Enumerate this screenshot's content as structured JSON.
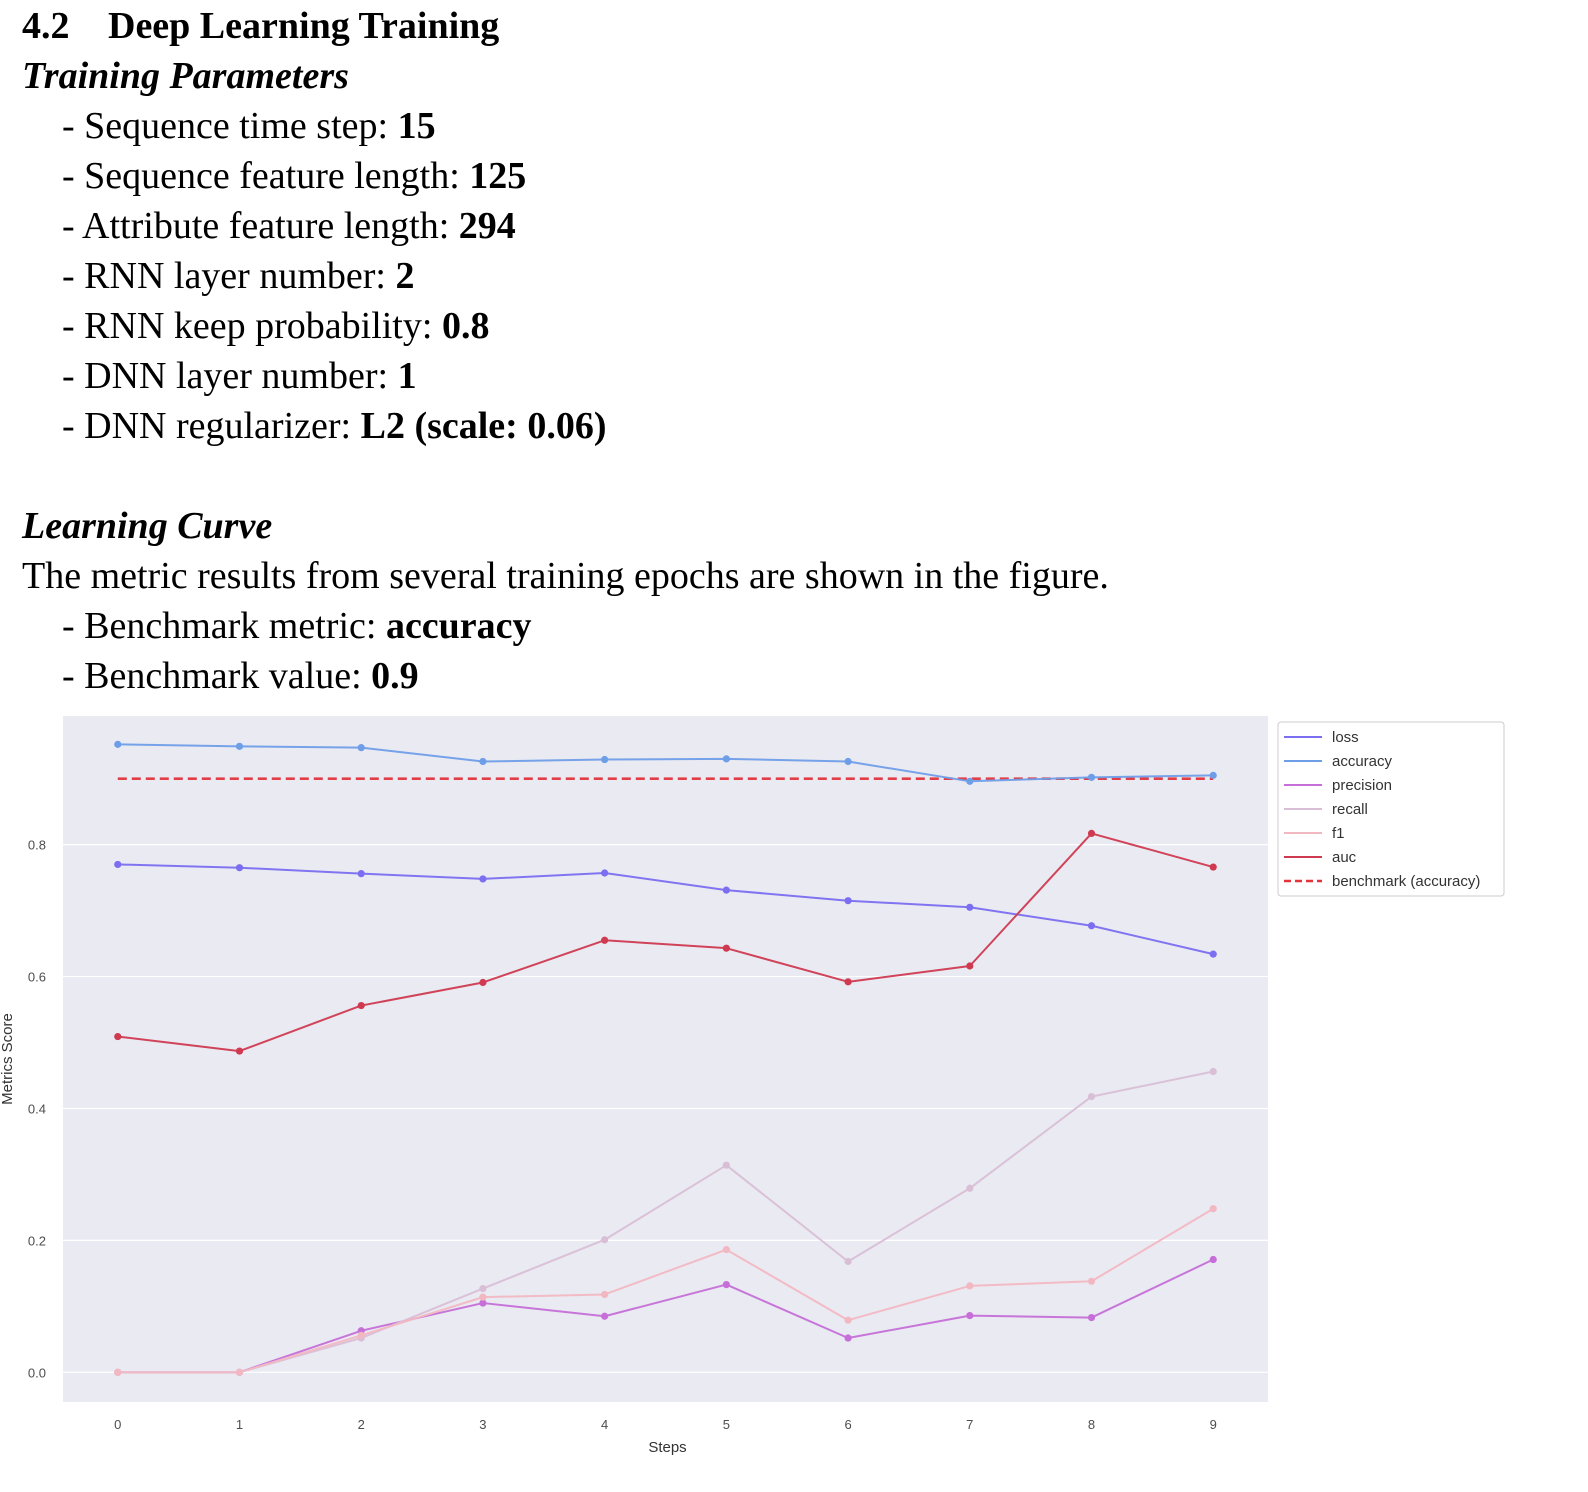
{
  "section": {
    "number": "4.2",
    "title": "Deep Learning Training"
  },
  "params": {
    "heading": "Training Parameters",
    "items": [
      {
        "label": "- Sequence time step: ",
        "value": "15"
      },
      {
        "label": "- Sequence feature length: ",
        "value": "125"
      },
      {
        "label": "- Attribute feature length: ",
        "value": "294"
      },
      {
        "label": "- RNN layer number: ",
        "value": "2"
      },
      {
        "label": "- RNN keep probability: ",
        "value": "0.8"
      },
      {
        "label": "- DNN layer number: ",
        "value": "1"
      },
      {
        "label": "- DNN regularizer: ",
        "value": "L2 (scale: 0.06)"
      }
    ]
  },
  "curve": {
    "heading": "Learning Curve",
    "text": "The metric results from several training epochs are shown in the figure.",
    "items": [
      {
        "label": "- Benchmark metric: ",
        "value": "accuracy"
      },
      {
        "label": "- Benchmark value: ",
        "value": "0.9"
      }
    ]
  },
  "chart_data": {
    "type": "line",
    "xlabel": "Steps",
    "ylabel": "Metrics Score",
    "x": [
      0,
      1,
      2,
      3,
      4,
      5,
      6,
      7,
      8,
      9
    ],
    "xlim": [
      -0.45,
      9.45
    ],
    "ylim": [
      -0.045,
      0.995
    ],
    "yticks": [
      0.0,
      0.2,
      0.4,
      0.6,
      0.8
    ],
    "ytick_labels": [
      "0.0",
      "0.2",
      "0.4",
      "0.6",
      "0.8"
    ],
    "grid": true,
    "background": "#eaeaf2",
    "legend_position": "outside-top-right",
    "series": [
      {
        "name": "loss",
        "color": "#7b6ef0",
        "values": [
          0.77,
          0.765,
          0.756,
          0.748,
          0.757,
          0.731,
          0.715,
          0.705,
          0.677,
          0.634
        ]
      },
      {
        "name": "accuracy",
        "color": "#6f9ee8",
        "values": [
          0.952,
          0.949,
          0.947,
          0.926,
          0.929,
          0.93,
          0.926,
          0.896,
          0.902,
          0.905
        ]
      },
      {
        "name": "precision",
        "color": "#c66fd8",
        "values": [
          0.0,
          0.0,
          0.063,
          0.105,
          0.085,
          0.133,
          0.052,
          0.086,
          0.083,
          0.171
        ]
      },
      {
        "name": "recall",
        "color": "#d9bfd6",
        "values": [
          0.0,
          0.0,
          0.052,
          0.127,
          0.201,
          0.314,
          0.168,
          0.279,
          0.418,
          0.456
        ]
      },
      {
        "name": "f1",
        "color": "#f2b8c2",
        "values": [
          0.0,
          0.0,
          0.056,
          0.114,
          0.118,
          0.186,
          0.079,
          0.131,
          0.138,
          0.248
        ]
      },
      {
        "name": "auc",
        "color": "#cf3a50",
        "values": [
          0.509,
          0.487,
          0.556,
          0.591,
          0.655,
          0.643,
          0.592,
          0.616,
          0.817,
          0.766
        ]
      },
      {
        "name": "benchmark (accuracy)",
        "color": "#e3343c",
        "dashed": true,
        "values": [
          0.9,
          0.9,
          0.9,
          0.9,
          0.9,
          0.9,
          0.9,
          0.9,
          0.9,
          0.9
        ]
      }
    ]
  }
}
